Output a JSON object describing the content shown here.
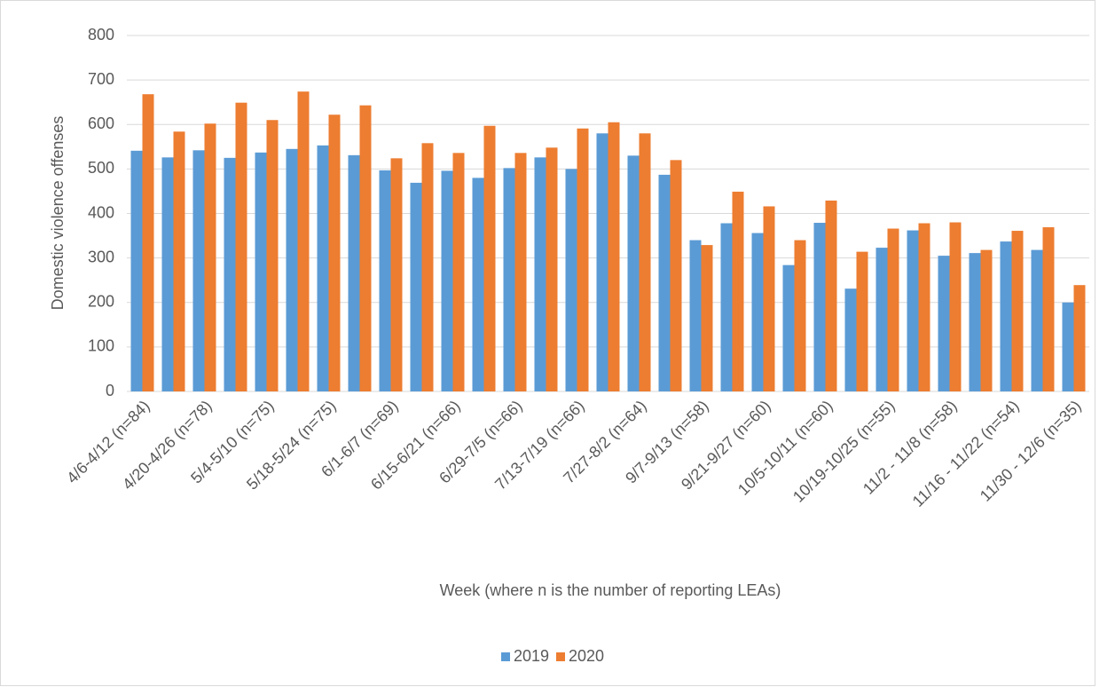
{
  "chart_data": {
    "type": "bar",
    "x_label": "Week (where n is the number of reporting LEAs)",
    "y_label": "Domestic violence offenses",
    "categories": [
      "4/6-4/12 (n=84)",
      null,
      "4/20-4/26 (n=78)",
      null,
      "5/4-5/10 (n=75)",
      null,
      "5/18-5/24 (n=75)",
      null,
      "6/1-6/7 (n=69)",
      null,
      "6/15-6/21 (n=66)",
      null,
      "6/29-7/5 (n=66)",
      null,
      "7/13-7/19 (n=66)",
      null,
      "7/27-8/2 (n=64)",
      null,
      "9/7-9/13 (n=58)",
      null,
      "9/21-9/27 (n=60)",
      null,
      "10/5-10/11 (n=60)",
      null,
      "10/19-10/25 (n=55)",
      null,
      "11/2 - 11/8 (n=58)",
      null,
      "11/16 - 11/22 (n=54)",
      null,
      "11/30 - 12/6 (n=35)"
    ],
    "series": [
      {
        "name": "2019",
        "color": "#5b9bd5",
        "values": [
          541,
          526,
          542,
          525,
          537,
          545,
          553,
          531,
          497,
          469,
          496,
          480,
          502,
          526,
          500,
          580,
          530,
          487,
          340,
          378,
          356,
          284,
          379,
          231,
          323,
          362,
          305,
          311,
          337,
          318,
          200
        ]
      },
      {
        "name": "2020",
        "color": "#ed7d31",
        "values": [
          668,
          584,
          602,
          649,
          610,
          674,
          622,
          643,
          524,
          558,
          536,
          597,
          536,
          548,
          591,
          605,
          580,
          520,
          329,
          449,
          416,
          340,
          429,
          314,
          366,
          378,
          380,
          318,
          361,
          369,
          239
        ]
      }
    ],
    "ylim": [
      0,
      800
    ],
    "yticks": [
      0,
      100,
      200,
      300,
      400,
      500,
      600,
      700,
      800
    ],
    "grid": true,
    "legend": "bottom"
  }
}
